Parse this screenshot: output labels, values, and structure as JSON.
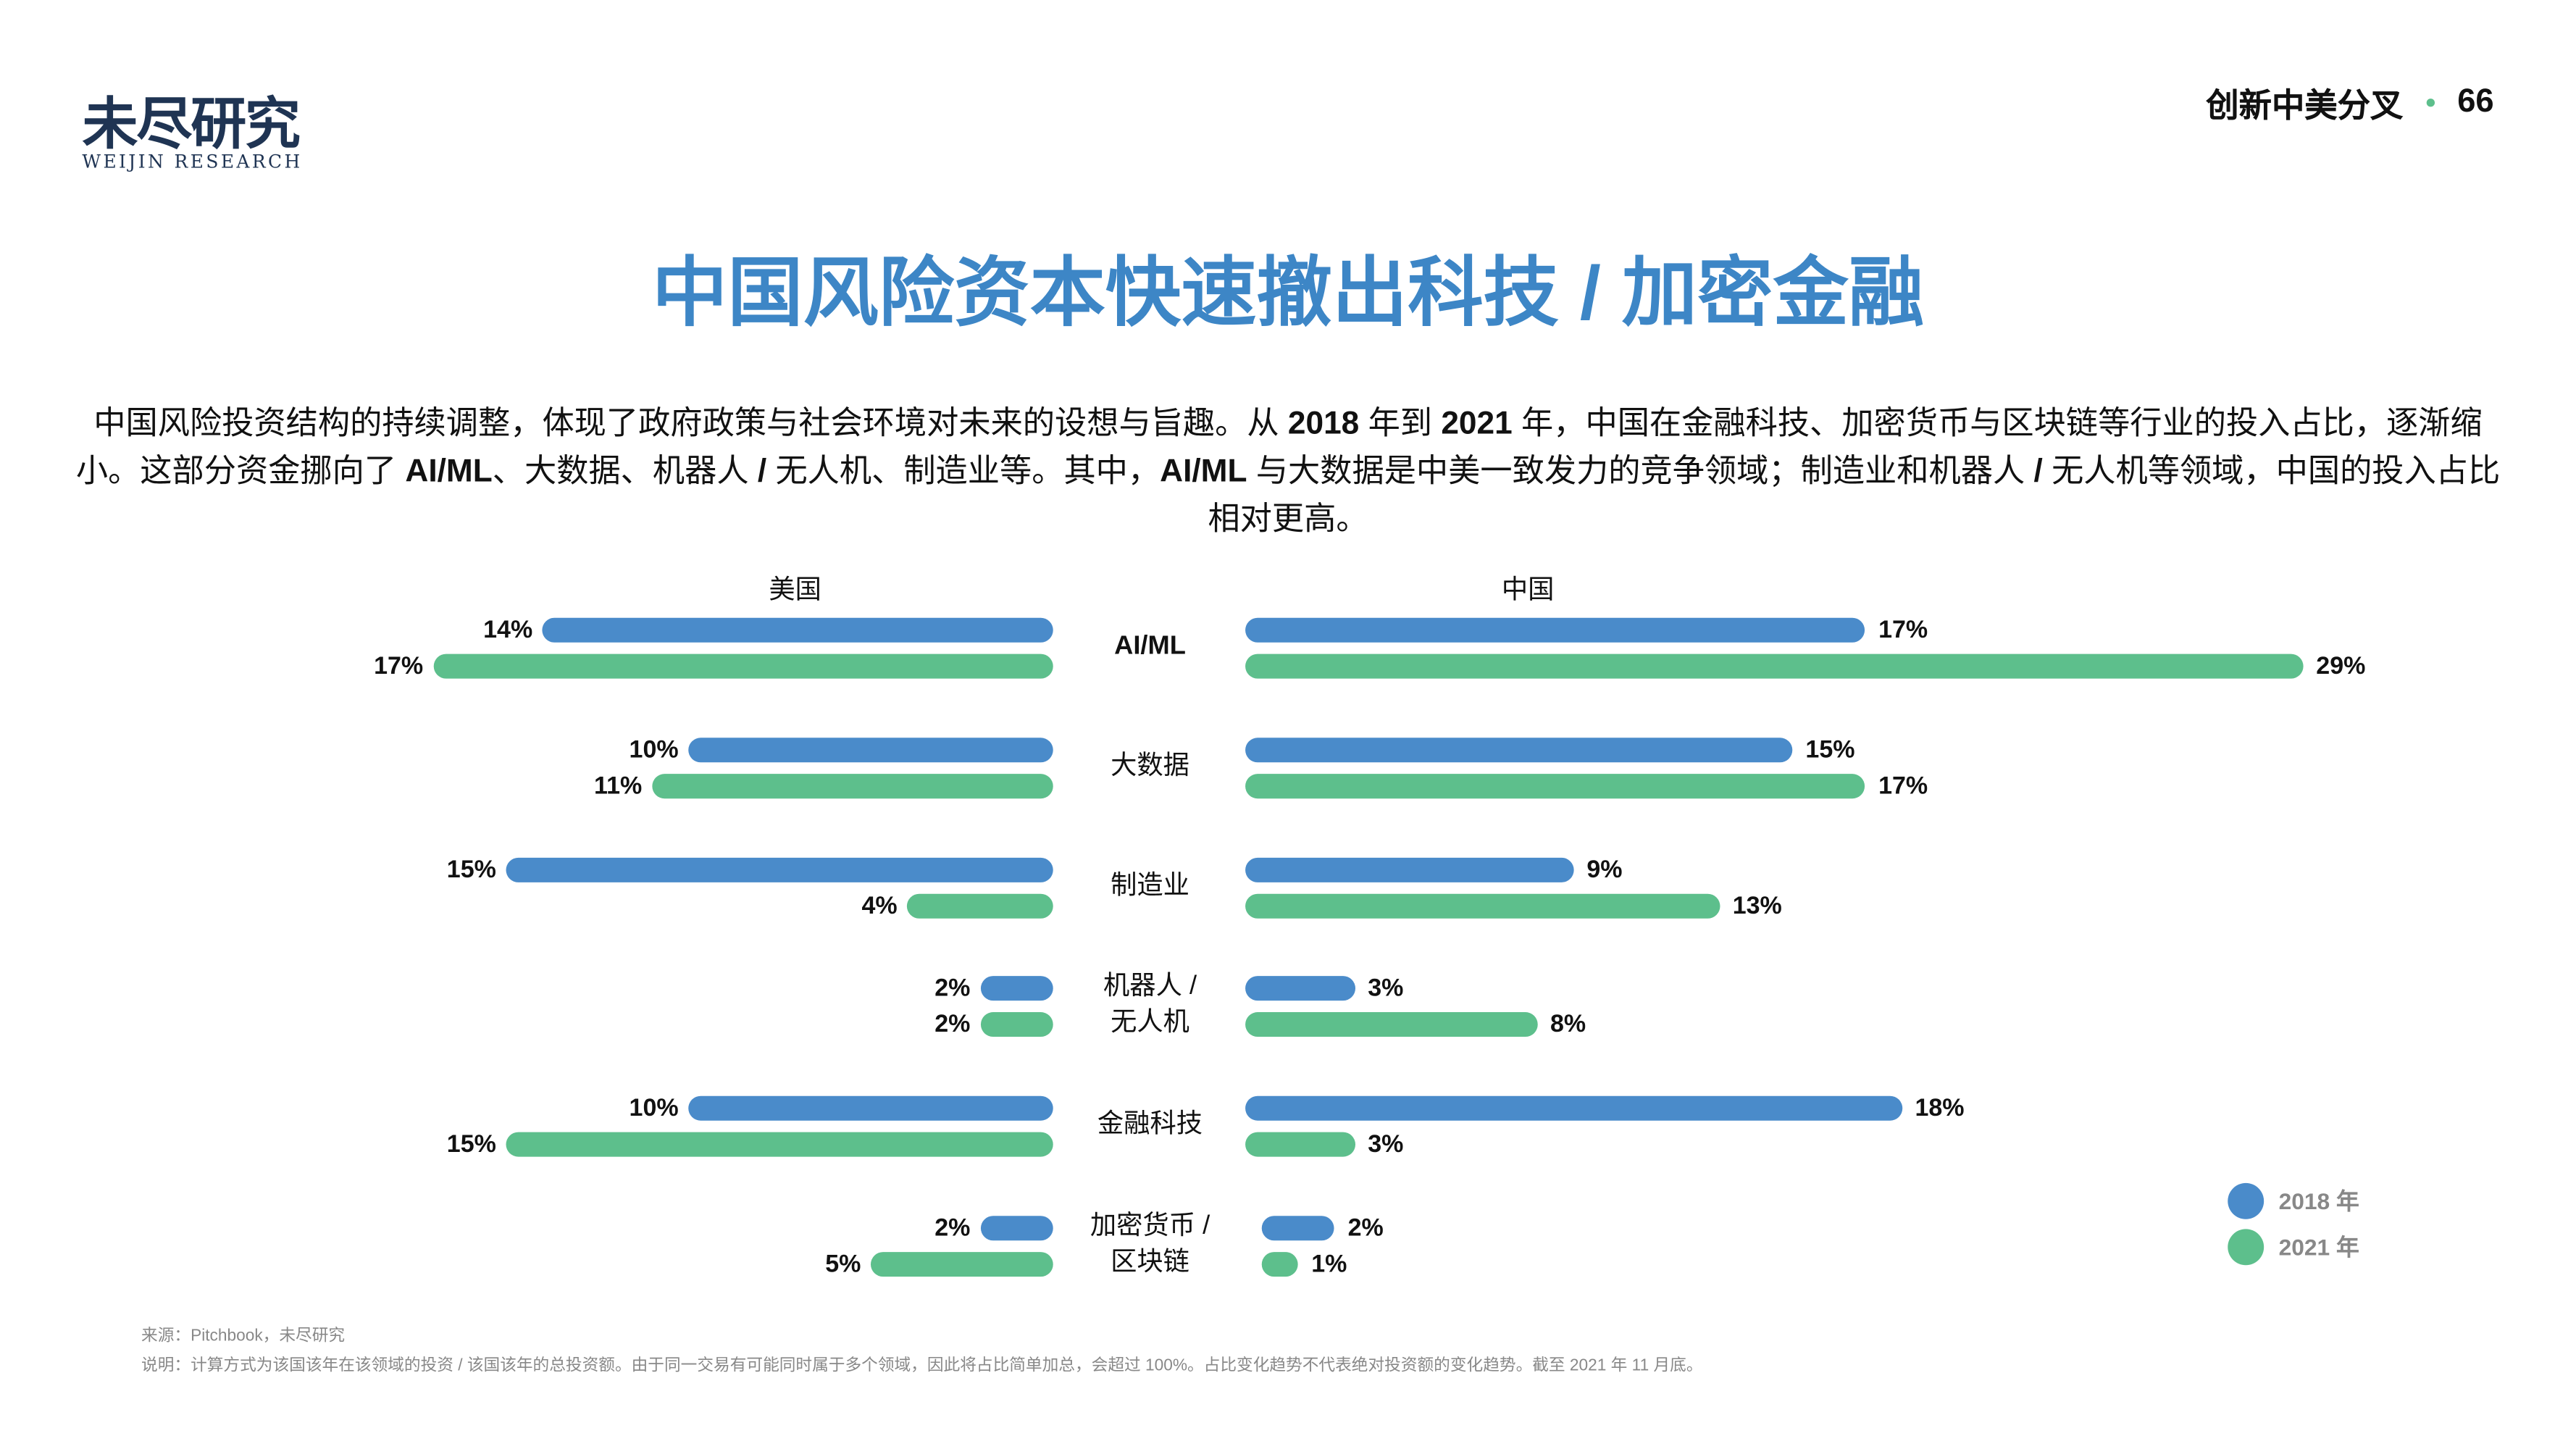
{
  "logo": {
    "cn": "未尽研究",
    "en": "WEIJIN RESEARCH"
  },
  "header": {
    "report": "创新中美分叉",
    "page": "66"
  },
  "title": "中国风险资本快速撤出科技 / 加密金融",
  "paragraph": [
    {
      "t": "中国风险投资结构的持续调整，体现了政府政策与社会环境对未来的设想与旨趣。从 ",
      "b": false
    },
    {
      "t": "2018",
      "b": true
    },
    {
      "t": " 年到 ",
      "b": false
    },
    {
      "t": "2021",
      "b": true
    },
    {
      "t": " 年，中国在金融科技、加密货币与区块链等行业的投入占比，逐渐缩小。这部分资金挪向了 ",
      "b": false
    },
    {
      "t": "AI/ML",
      "b": true
    },
    {
      "t": "、大数据、机器人 ",
      "b": false
    },
    {
      "t": "/",
      "b": true
    },
    {
      "t": " 无人机、制造业等。其中，",
      "b": false
    },
    {
      "t": "AI/ML",
      "b": true
    },
    {
      "t": " 与大数据是中美一致发力的竞争领域；制造业和机器人 ",
      "b": false
    },
    {
      "t": "/",
      "b": true
    },
    {
      "t": " 无人机等领域，中国的投入占比相对更高。",
      "b": false
    }
  ],
  "chart_data": {
    "type": "bar",
    "orientation": "horizontal-butterfly",
    "unit": "%",
    "panels": [
      "美国",
      "中国"
    ],
    "categories": [
      "AI/ML",
      "大数据",
      "制造业",
      "机器人 / 无人机",
      "金融科技",
      "加密货币 / 区块链"
    ],
    "category_lines": [
      [
        "AI/ML"
      ],
      [
        "大数据"
      ],
      [
        "制造业"
      ],
      [
        "机器人 /",
        "无人机"
      ],
      [
        "金融科技"
      ],
      [
        "加密货币 /",
        "区块链"
      ]
    ],
    "series": [
      {
        "name": "2018 年",
        "color": "#4a8bca",
        "us": [
          14,
          10,
          15,
          2,
          10,
          2
        ],
        "cn": [
          17,
          15,
          9,
          3,
          18,
          2
        ]
      },
      {
        "name": "2021 年",
        "color": "#5dbf8c",
        "us": [
          17,
          11,
          4,
          2,
          15,
          5
        ],
        "cn": [
          29,
          17,
          13,
          8,
          3,
          1
        ]
      }
    ],
    "legend_position": "bottom-right",
    "grid": false
  },
  "footer": {
    "source": "来源：Pitchbook，未尽研究",
    "note": "说明：计算方式为该国该年在该领域的投资 / 该国该年的总投资额。由于同一交易有可能同时属于多个领域，因此将占比简单加总，会超过 100%。占比变化趋势不代表绝对投资额的变化趋势。截至 2021 年 11 月底。"
  }
}
